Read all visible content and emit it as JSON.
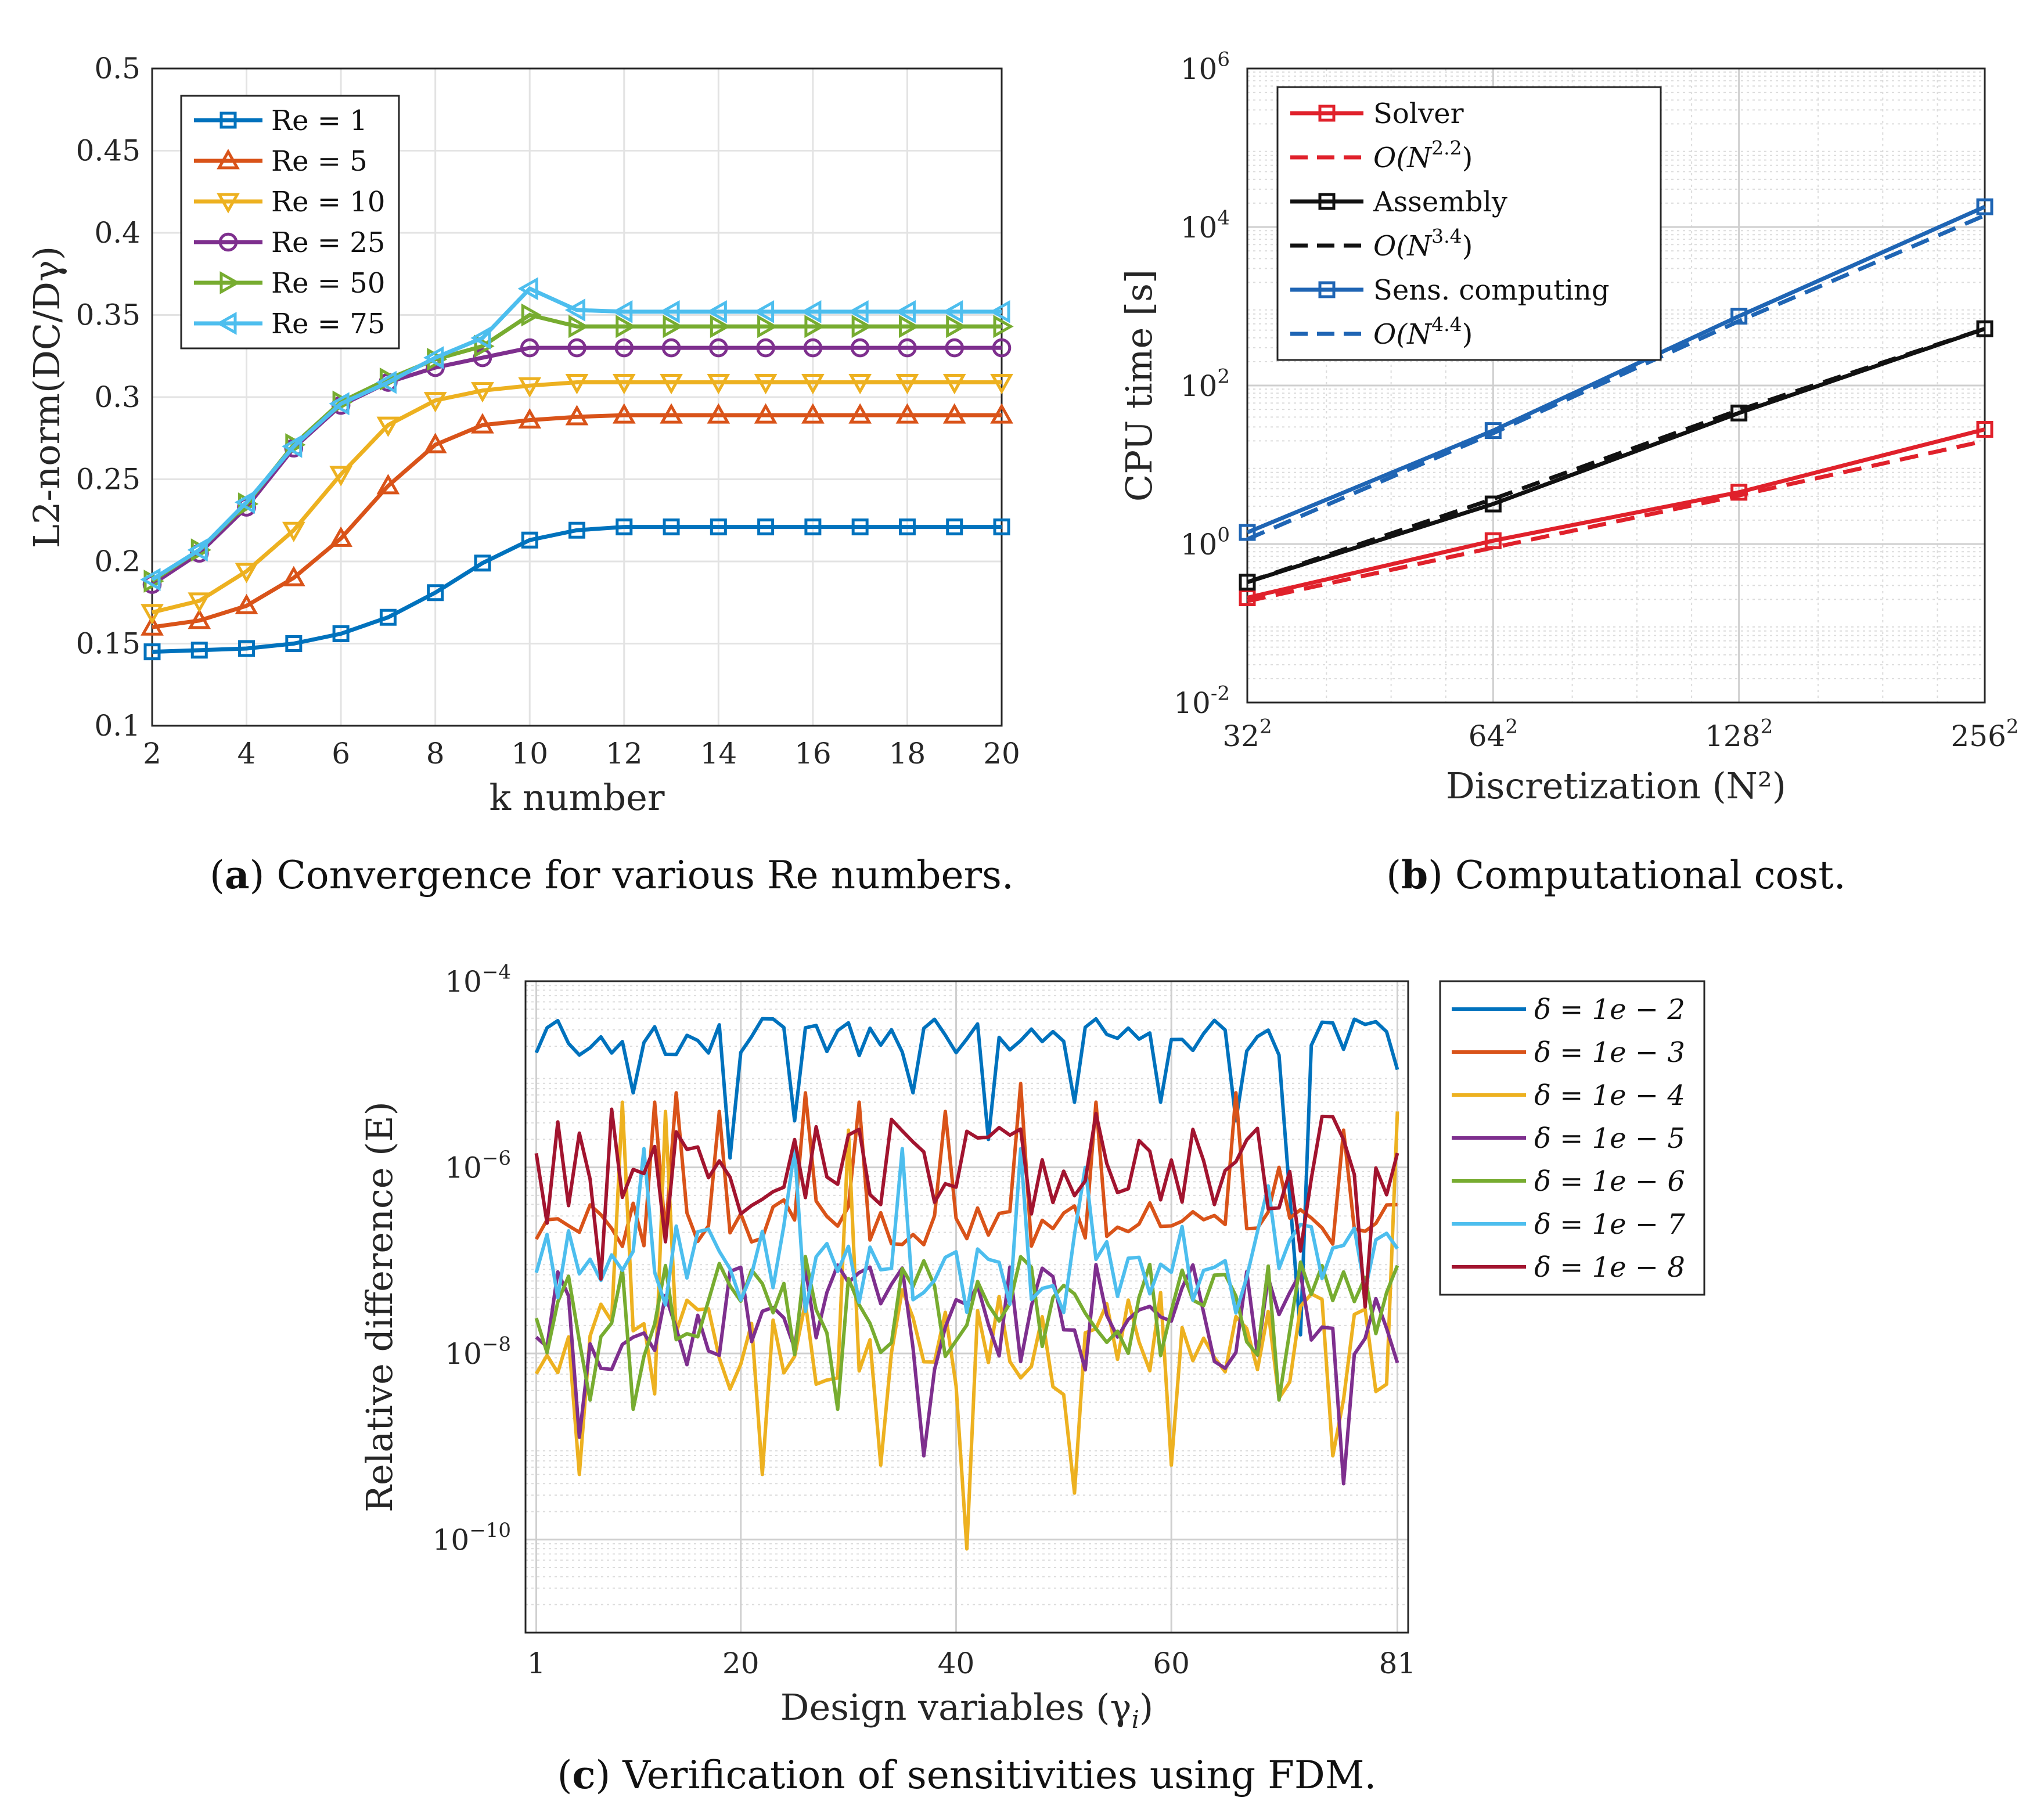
{
  "chart_data": [
    {
      "id": "a",
      "type": "line",
      "caption_letter": "a",
      "caption_text": " Convergence for various Re numbers.",
      "xlabel": "k number",
      "ylabel": "L2-norm(DC/Dγ)",
      "xlim": [
        2,
        20
      ],
      "ylim": [
        0.1,
        0.5
      ],
      "xticks": [
        2,
        4,
        6,
        8,
        10,
        12,
        14,
        16,
        18,
        20
      ],
      "yticks": [
        0.1,
        0.15,
        0.2,
        0.25,
        0.3,
        0.35,
        0.4,
        0.45,
        0.5
      ],
      "ytick_labels": [
        "0.1",
        "0.15",
        "0.2",
        "0.25",
        "0.3",
        "0.35",
        "0.4",
        "0.45",
        "0.5"
      ],
      "grid": true,
      "legend_position": "top-left",
      "x": [
        2,
        3,
        4,
        5,
        6,
        7,
        8,
        9,
        10,
        11,
        12,
        13,
        14,
        15,
        16,
        17,
        18,
        19,
        20
      ],
      "series": [
        {
          "name": "Re = 1",
          "color": "#0072BD",
          "marker": "square",
          "values": [
            0.145,
            0.146,
            0.147,
            0.15,
            0.156,
            0.166,
            0.181,
            0.199,
            0.213,
            0.219,
            0.221,
            0.221,
            0.221,
            0.221,
            0.221,
            0.221,
            0.221,
            0.221,
            0.221
          ]
        },
        {
          "name": "Re = 5",
          "color": "#D95319",
          "marker": "triangle-up",
          "values": [
            0.16,
            0.164,
            0.173,
            0.19,
            0.214,
            0.246,
            0.271,
            0.283,
            0.286,
            0.288,
            0.289,
            0.289,
            0.289,
            0.289,
            0.289,
            0.289,
            0.289,
            0.289,
            0.289
          ]
        },
        {
          "name": "Re = 10",
          "color": "#EDB120",
          "marker": "triangle-down",
          "values": [
            0.169,
            0.176,
            0.194,
            0.219,
            0.253,
            0.283,
            0.298,
            0.304,
            0.307,
            0.309,
            0.309,
            0.309,
            0.309,
            0.309,
            0.309,
            0.309,
            0.309,
            0.309,
            0.309
          ]
        },
        {
          "name": "Re = 25",
          "color": "#7E2F8E",
          "marker": "circle",
          "values": [
            0.186,
            0.205,
            0.233,
            0.269,
            0.295,
            0.309,
            0.318,
            0.324,
            0.33,
            0.33,
            0.33,
            0.33,
            0.33,
            0.33,
            0.33,
            0.33,
            0.33,
            0.33,
            0.33
          ]
        },
        {
          "name": "Re = 50",
          "color": "#77AC30",
          "marker": "triangle-right",
          "values": [
            0.188,
            0.207,
            0.235,
            0.271,
            0.297,
            0.311,
            0.323,
            0.331,
            0.35,
            0.343,
            0.343,
            0.343,
            0.343,
            0.343,
            0.343,
            0.343,
            0.343,
            0.343,
            0.343
          ]
        },
        {
          "name": "Re = 75",
          "color": "#4DBEEE",
          "marker": "triangle-left",
          "values": [
            0.189,
            0.207,
            0.236,
            0.27,
            0.296,
            0.309,
            0.324,
            0.336,
            0.366,
            0.353,
            0.352,
            0.352,
            0.352,
            0.352,
            0.352,
            0.352,
            0.352,
            0.352,
            0.352
          ]
        }
      ]
    },
    {
      "id": "b",
      "type": "line",
      "scale": "log-log",
      "caption_letter": "b",
      "caption_text": " Computational cost.",
      "xlabel": "Discretization (N²)",
      "ylabel": "CPU time [s]",
      "xticks": [
        32,
        64,
        128,
        256
      ],
      "xtick_bases": [
        "32",
        "64",
        "128",
        "256"
      ],
      "xtick_sup": "2",
      "ylim_exp": [
        -2,
        6
      ],
      "yticks_exp": [
        -2,
        0,
        2,
        4,
        6
      ],
      "ytick_base": "10",
      "grid": true,
      "legend_position": "top-left",
      "x": [
        32,
        64,
        128,
        256
      ],
      "series": [
        {
          "name": "Solver",
          "color": "#E0212B",
          "dashed": false,
          "marker": "square",
          "values": [
            0.21,
            1.1,
            4.5,
            28
          ]
        },
        {
          "name": "O(N^2.2)",
          "label_base": "O(N",
          "label_exp": "2.2",
          "label_end": ")",
          "color": "#E0212B",
          "dashed": true,
          "values": [
            0.19,
            0.9,
            4.1,
            20
          ]
        },
        {
          "name": "Assembly",
          "color": "#111111",
          "dashed": false,
          "marker": "square",
          "values": [
            0.33,
            3.2,
            45,
            520
          ]
        },
        {
          "name": "O(N^3.4)",
          "label_base": "O(N",
          "label_exp": "3.4",
          "label_end": ")",
          "color": "#111111",
          "dashed": true,
          "values": [
            0.33,
            3.7,
            49,
            520
          ]
        },
        {
          "name": "Sens. computing",
          "color": "#1F65B4",
          "dashed": false,
          "marker": "square",
          "values": [
            1.4,
            27,
            750,
            18000
          ]
        },
        {
          "name": "O(N^4.4)",
          "label_base": "O(N",
          "label_exp": "4.4",
          "label_end": ")",
          "color": "#1F65B4",
          "dashed": true,
          "values": [
            1.15,
            25,
            650,
            14000
          ]
        }
      ]
    },
    {
      "id": "c",
      "type": "line",
      "scale": "semilog-y",
      "caption_letter": "c",
      "caption_text": " Verification of sensitivities using FDM.",
      "xlabel": "Design variables (γ",
      "xlabel_sub": "i",
      "xlabel_end": ")",
      "ylabel": "Relative difference (E)",
      "xlim": [
        0,
        82
      ],
      "xticks": [
        1,
        20,
        40,
        60,
        81
      ],
      "ylim_exp": [
        -11,
        -4
      ],
      "yticks_exp": [
        -10,
        -8,
        -6,
        -4
      ],
      "ytick_base": "10",
      "grid": true,
      "legend_position": "outside-right",
      "series": [
        {
          "name": "δ = 1e − 2",
          "color": "#0072BD",
          "base": -4.6,
          "amp": 0.2,
          "dips": [
            [
              10,
              -5.2
            ],
            [
              19,
              -5.9
            ],
            [
              25,
              -5.5
            ],
            [
              36,
              -5.2
            ],
            [
              43,
              -5.7
            ],
            [
              51,
              -5.3
            ],
            [
              59,
              -5.3
            ],
            [
              66,
              -5.5
            ],
            [
              71,
              -6.3
            ],
            [
              72,
              -7.8
            ],
            [
              81,
              -4.95
            ]
          ],
          "seed": 1
        },
        {
          "name": "δ = 1e − 3",
          "color": "#D95319",
          "base": -6.6,
          "amp": 0.25,
          "spikes": [
            [
              12,
              -5.3
            ],
            [
              14,
              -5.2
            ],
            [
              18,
              -5.4
            ],
            [
              26,
              -5.2
            ],
            [
              31,
              -5.3
            ],
            [
              39,
              -5.4
            ],
            [
              46,
              -5.1
            ],
            [
              53,
              -5.3
            ],
            [
              66,
              -5.2
            ],
            [
              70,
              -6.0
            ],
            [
              76,
              -5.6
            ],
            [
              81,
              -6.4
            ]
          ],
          "seed": 2
        },
        {
          "name": "δ = 1e − 4",
          "color": "#EDB120",
          "base": -7.9,
          "amp": 0.6,
          "spikes": [
            [
              9,
              -5.3
            ],
            [
              13,
              -5.4
            ],
            [
              30,
              -5.6
            ]
          ],
          "dips": [
            [
              5,
              -9.3
            ],
            [
              22,
              -9.3
            ],
            [
              33,
              -9.2
            ],
            [
              41,
              -10.1
            ],
            [
              51,
              -9.5
            ],
            [
              60,
              -9.2
            ],
            [
              75,
              -9.1
            ],
            [
              81,
              -5.4
            ]
          ],
          "seed": 3
        },
        {
          "name": "δ = 1e − 5",
          "color": "#7E2F8E",
          "base": -7.6,
          "amp": 0.6,
          "dips": [
            [
              5,
              -8.9
            ],
            [
              37,
              -9.1
            ],
            [
              76,
              -9.4
            ]
          ],
          "seed": 4
        },
        {
          "name": "δ = 1e − 6",
          "color": "#77AC30",
          "base": -7.5,
          "amp": 0.55,
          "dips": [
            [
              6,
              -8.5
            ],
            [
              10,
              -8.6
            ],
            [
              29,
              -8.6
            ],
            [
              70,
              -8.5
            ]
          ],
          "seed": 5
        },
        {
          "name": "δ = 1e − 7",
          "color": "#4DBEEE",
          "base": -7.1,
          "amp": 0.5,
          "spikes": [
            [
              11,
              -5.8
            ],
            [
              25,
              -5.8
            ],
            [
              35,
              -5.8
            ],
            [
              46,
              -5.8
            ],
            [
              52,
              -6.0
            ],
            [
              69,
              -6.2
            ]
          ],
          "seed": 6
        },
        {
          "name": "δ = 1e − 8",
          "color": "#A2142F",
          "base": -5.9,
          "amp": 0.55,
          "dips": [
            [
              2,
              -6.6
            ],
            [
              7,
              -7.2
            ],
            [
              13,
              -6.8
            ],
            [
              20,
              -6.5
            ],
            [
              33,
              -6.4
            ],
            [
              47,
              -6.5
            ],
            [
              64,
              -6.4
            ],
            [
              72,
              -6.9
            ],
            [
              78,
              -7.5
            ]
          ],
          "seed": 7
        }
      ]
    }
  ]
}
